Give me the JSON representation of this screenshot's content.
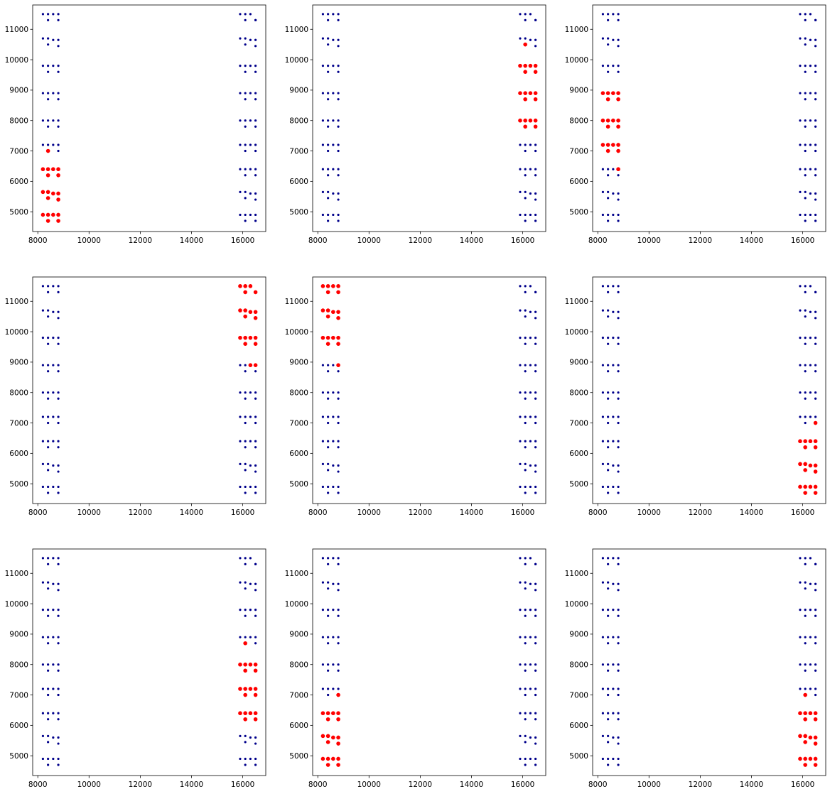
{
  "chart_data": {
    "type": "scatter",
    "grid": false,
    "xlim": [
      7800,
      16900
    ],
    "ylim": [
      4350,
      11800
    ],
    "xticks": [
      8000,
      10000,
      12000,
      14000,
      16000
    ],
    "yticks": [
      5000,
      6000,
      7000,
      8000,
      9000,
      10000,
      11000
    ],
    "colors": {
      "base": "#00008b",
      "highlight": "#ff0000"
    },
    "base_points": {
      "x": [
        8200,
        8400,
        8600,
        8800,
        8400,
        8800,
        8200,
        8400,
        8600,
        8800,
        8400,
        8800,
        8200,
        8400,
        8600,
        8800,
        8400,
        8800,
        8200,
        8400,
        8600,
        8800,
        8400,
        8800,
        8200,
        8400,
        8600,
        8800,
        8400,
        8800,
        8200,
        8400,
        8600,
        8800,
        8400,
        8800,
        8200,
        8400,
        8600,
        8800,
        8400,
        8800,
        8200,
        8400,
        8600,
        8800,
        8400,
        8800,
        8200,
        8400,
        8600,
        8800,
        8400,
        8800,
        15900,
        16100,
        16300,
        16500,
        16100,
        16500,
        15900,
        16100,
        16300,
        16500,
        16100,
        16500,
        15900,
        16100,
        16300,
        16500,
        16100,
        16500,
        15900,
        16100,
        16300,
        16500,
        16100,
        16500,
        15900,
        16100,
        16300,
        16500,
        16100,
        16500,
        15900,
        16100,
        16300,
        16500,
        16100,
        16500,
        15900,
        16100,
        16300,
        16500,
        16100,
        16500,
        15900,
        16100,
        16300,
        16500,
        16100,
        16500,
        15900,
        16100,
        16300,
        16500,
        16100,
        16500
      ],
      "y": [
        11500,
        11500,
        11500,
        11500,
        11300,
        11300,
        10700,
        10700,
        10650,
        10650,
        10500,
        10450,
        9800,
        9800,
        9800,
        9800,
        9600,
        9600,
        8900,
        8900,
        8900,
        8900,
        8700,
        8700,
        8000,
        8000,
        8000,
        8000,
        7800,
        7800,
        7200,
        7200,
        7200,
        7200,
        7000,
        7000,
        6400,
        6400,
        6400,
        6400,
        6200,
        6200,
        5650,
        5650,
        5600,
        5600,
        5450,
        5400,
        4900,
        4900,
        4900,
        4900,
        4700,
        4700,
        11500,
        11500,
        11500,
        11300,
        11300,
        11300,
        10700,
        10700,
        10650,
        10650,
        10500,
        10450,
        9800,
        9800,
        9800,
        9800,
        9600,
        9600,
        8900,
        8900,
        8900,
        8900,
        8700,
        8700,
        8000,
        8000,
        8000,
        8000,
        7800,
        7800,
        7200,
        7200,
        7200,
        7200,
        7000,
        7000,
        6400,
        6400,
        6400,
        6400,
        6200,
        6200,
        5650,
        5650,
        5600,
        5600,
        5450,
        5400,
        4900,
        4900,
        4900,
        4900,
        4700,
        4700
      ]
    },
    "panels": [
      {
        "highlight": {
          "x": [
            8400,
            8200,
            8400,
            8600,
            8800,
            8400,
            8800,
            8200,
            8400,
            8600,
            8800,
            8400,
            8800,
            8200,
            8400,
            8600,
            8800,
            8400,
            8800
          ],
          "y": [
            7000,
            6400,
            6400,
            6400,
            6400,
            6200,
            6200,
            5650,
            5650,
            5600,
            5600,
            5450,
            5400,
            4900,
            4900,
            4900,
            4900,
            4700,
            4700
          ]
        }
      },
      {
        "highlight": {
          "x": [
            16100,
            15900,
            16100,
            16300,
            16500,
            16100,
            16500,
            15900,
            16100,
            16300,
            16500,
            16100,
            16500,
            15900,
            16100,
            16300,
            16500,
            16100,
            16500
          ],
          "y": [
            10500,
            9800,
            9800,
            9800,
            9800,
            9600,
            9600,
            8900,
            8900,
            8900,
            8900,
            8700,
            8700,
            8000,
            8000,
            8000,
            8000,
            7800,
            7800
          ]
        }
      },
      {
        "highlight": {
          "x": [
            8200,
            8400,
            8600,
            8800,
            8400,
            8800,
            8200,
            8400,
            8600,
            8800,
            8400,
            8800,
            8200,
            8400,
            8600,
            8800,
            8400,
            8800,
            8800
          ],
          "y": [
            8900,
            8900,
            8900,
            8900,
            8700,
            8700,
            8000,
            8000,
            8000,
            8000,
            7800,
            7800,
            7200,
            7200,
            7200,
            7200,
            7000,
            7000,
            6400
          ]
        }
      },
      {
        "highlight": {
          "x": [
            15900,
            16100,
            16300,
            16100,
            16500,
            15900,
            16100,
            16300,
            16500,
            16100,
            16500,
            15900,
            16100,
            16300,
            16500,
            16100,
            16500,
            16300,
            16500
          ],
          "y": [
            11500,
            11500,
            11500,
            11300,
            11300,
            10700,
            10700,
            10650,
            10650,
            10500,
            10450,
            9800,
            9800,
            9800,
            9800,
            9600,
            9600,
            8900,
            8900
          ]
        }
      },
      {
        "highlight": {
          "x": [
            8200,
            8400,
            8600,
            8800,
            8400,
            8800,
            8200,
            8400,
            8600,
            8800,
            8400,
            8800,
            8200,
            8400,
            8600,
            8800,
            8400,
            8800,
            8800
          ],
          "y": [
            11500,
            11500,
            11500,
            11500,
            11300,
            11300,
            10700,
            10700,
            10650,
            10650,
            10500,
            10450,
            9800,
            9800,
            9800,
            9800,
            9600,
            9600,
            8900
          ]
        }
      },
      {
        "highlight": {
          "x": [
            16500,
            15900,
            16100,
            16300,
            16500,
            16100,
            16500,
            15900,
            16100,
            16300,
            16500,
            16100,
            16500,
            15900,
            16100,
            16300,
            16500,
            16100,
            16500
          ],
          "y": [
            7000,
            6400,
            6400,
            6400,
            6400,
            6200,
            6200,
            5650,
            5650,
            5600,
            5600,
            5450,
            5400,
            4900,
            4900,
            4900,
            4900,
            4700,
            4700
          ]
        }
      },
      {
        "highlight": {
          "x": [
            16100,
            15900,
            16100,
            16300,
            16500,
            16100,
            16500,
            15900,
            16100,
            16300,
            16500,
            16100,
            16500,
            15900,
            16100,
            16300,
            16500,
            16100,
            16500
          ],
          "y": [
            8700,
            8000,
            8000,
            8000,
            8000,
            7800,
            7800,
            7200,
            7200,
            7200,
            7200,
            7000,
            7000,
            6400,
            6400,
            6400,
            6400,
            6200,
            6200
          ]
        }
      },
      {
        "highlight": {
          "x": [
            8800,
            8200,
            8400,
            8600,
            8800,
            8400,
            8800,
            8200,
            8400,
            8600,
            8800,
            8400,
            8800,
            8200,
            8400,
            8600,
            8800,
            8400,
            8800
          ],
          "y": [
            7000,
            6400,
            6400,
            6400,
            6400,
            6200,
            6200,
            5650,
            5650,
            5600,
            5600,
            5450,
            5400,
            4900,
            4900,
            4900,
            4900,
            4700,
            4700
          ]
        }
      },
      {
        "highlight": {
          "x": [
            16100,
            15900,
            16100,
            16300,
            16500,
            16100,
            16500,
            15900,
            16100,
            16300,
            16500,
            16100,
            16500,
            15900,
            16100,
            16300,
            16500,
            16100,
            16500
          ],
          "y": [
            7000,
            6400,
            6400,
            6400,
            6400,
            6200,
            6200,
            5650,
            5650,
            5600,
            5600,
            5450,
            5400,
            4900,
            4900,
            4900,
            4900,
            4700,
            4700
          ]
        }
      }
    ]
  }
}
